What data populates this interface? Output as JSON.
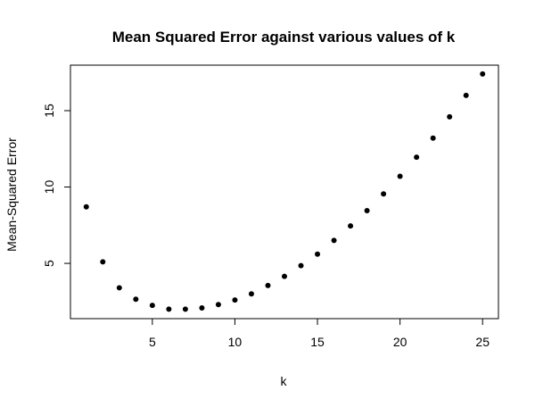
{
  "chart_data": {
    "type": "scatter",
    "title": "Mean Squared Error against various values of k",
    "xlabel": "k",
    "ylabel": "Mean-Squared Error",
    "xlim": [
      0.04,
      25.96
    ],
    "ylim": [
      1.38,
      17.98
    ],
    "x_ticks": [
      5,
      10,
      15,
      20,
      25
    ],
    "y_ticks": [
      5,
      10,
      15
    ],
    "grid": false,
    "legend": "none",
    "point_color": "#000000",
    "series": [
      {
        "x": [
          1,
          2,
          3,
          4,
          5,
          6,
          7,
          8,
          9,
          10,
          11,
          12,
          13,
          14,
          15,
          16,
          17,
          18,
          19,
          20,
          21,
          22,
          23,
          24,
          25
        ],
        "y": [
          8.7,
          5.1,
          3.4,
          2.65,
          2.25,
          2.0,
          2.0,
          2.08,
          2.3,
          2.6,
          3.0,
          3.55,
          4.15,
          4.85,
          5.6,
          6.5,
          7.45,
          8.45,
          9.55,
          10.7,
          11.95,
          13.2,
          14.6,
          16.0,
          17.4
        ]
      }
    ]
  }
}
